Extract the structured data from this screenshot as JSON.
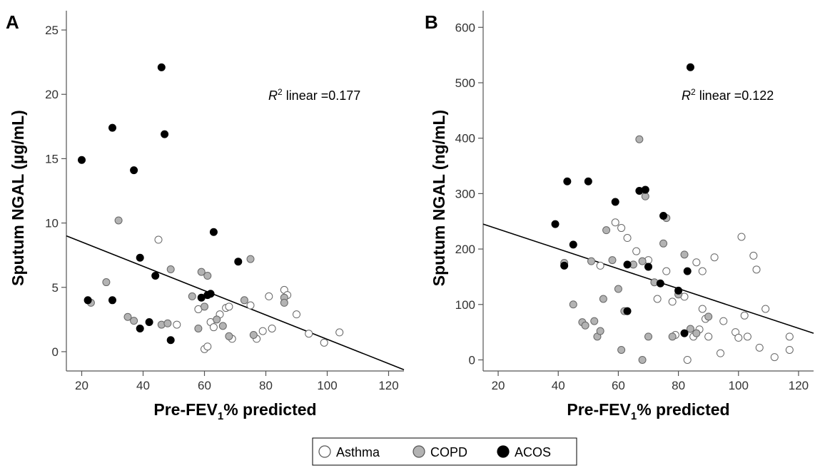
{
  "legend": {
    "items": [
      {
        "label": "Asthma",
        "fill": "#ffffff"
      },
      {
        "label": "COPD",
        "fill": "#b3b3b3"
      },
      {
        "label": "ACOS",
        "fill": "#000000"
      }
    ]
  },
  "chart_data": [
    {
      "type": "scatter",
      "panel_label": "A",
      "xlabel_main": "Pre-FEV",
      "xlabel_sub": "1",
      "xlabel_rest": "% predicted",
      "ylabel": "Sputum NGAL (µg/mL)",
      "xlim": [
        15,
        125
      ],
      "ylim": [
        -1.5,
        26.5
      ],
      "x_ticks": [
        20,
        40,
        60,
        80,
        100,
        120
      ],
      "y_ticks": [
        0,
        5,
        10,
        15,
        20,
        25
      ],
      "annotation_r": "R",
      "annotation_sup": "2",
      "annotation_rest": " linear =0.177",
      "fit_line": [
        [
          15,
          9.0
        ],
        [
          125,
          -1.4
        ]
      ],
      "series": [
        {
          "name": "Asthma",
          "points": [
            [
              45,
              8.7
            ],
            [
              51,
              2.1
            ],
            [
              58,
              3.3
            ],
            [
              60,
              0.2
            ],
            [
              61,
              0.4
            ],
            [
              62,
              2.3
            ],
            [
              63,
              1.9
            ],
            [
              65,
              2.9
            ],
            [
              67,
              3.4
            ],
            [
              68,
              3.5
            ],
            [
              69,
              1.0
            ],
            [
              75,
              3.6
            ],
            [
              77,
              1.0
            ],
            [
              79,
              1.6
            ],
            [
              81,
              4.3
            ],
            [
              82,
              1.8
            ],
            [
              86,
              4.8
            ],
            [
              87,
              4.4
            ],
            [
              90,
              2.9
            ],
            [
              94,
              1.4
            ],
            [
              99,
              0.7
            ],
            [
              104,
              1.5
            ]
          ]
        },
        {
          "name": "COPD",
          "points": [
            [
              23,
              3.8
            ],
            [
              28,
              5.4
            ],
            [
              32,
              10.2
            ],
            [
              35,
              2.7
            ],
            [
              37,
              2.4
            ],
            [
              46,
              2.1
            ],
            [
              48,
              2.2
            ],
            [
              49,
              6.4
            ],
            [
              56,
              4.3
            ],
            [
              58,
              1.8
            ],
            [
              59,
              6.2
            ],
            [
              60,
              3.5
            ],
            [
              61,
              5.9
            ],
            [
              64,
              2.5
            ],
            [
              66,
              2.0
            ],
            [
              68,
              1.2
            ],
            [
              73,
              4.0
            ],
            [
              75,
              7.2
            ],
            [
              76,
              1.3
            ],
            [
              86,
              4.2
            ],
            [
              86,
              3.8
            ]
          ]
        },
        {
          "name": "ACOS",
          "points": [
            [
              20,
              14.9
            ],
            [
              22,
              4.0
            ],
            [
              30,
              17.4
            ],
            [
              30,
              4.0
            ],
            [
              37,
              14.1
            ],
            [
              39,
              7.3
            ],
            [
              39,
              1.8
            ],
            [
              42,
              2.3
            ],
            [
              44,
              5.9
            ],
            [
              46,
              22.1
            ],
            [
              47,
              16.9
            ],
            [
              49,
              0.9
            ],
            [
              59,
              4.2
            ],
            [
              61,
              4.4
            ],
            [
              62,
              4.5
            ],
            [
              63,
              9.3
            ],
            [
              71,
              7.0
            ]
          ]
        }
      ]
    },
    {
      "type": "scatter",
      "panel_label": "B",
      "xlabel_main": "Pre-FEV",
      "xlabel_sub": "1",
      "xlabel_rest": "% predicted",
      "ylabel": "Sputum NGAL (ng/mL)",
      "xlim": [
        15,
        125
      ],
      "ylim": [
        -20,
        630
      ],
      "x_ticks": [
        20,
        40,
        60,
        80,
        100,
        120
      ],
      "y_ticks": [
        0,
        100,
        200,
        300,
        400,
        500,
        600
      ],
      "annotation_r": "R",
      "annotation_sup": "2",
      "annotation_rest": " linear =0.122",
      "fit_line": [
        [
          15,
          245
        ],
        [
          125,
          48
        ]
      ],
      "series": [
        {
          "name": "Asthma",
          "points": [
            [
              54,
              170
            ],
            [
              59,
              248
            ],
            [
              61,
              238
            ],
            [
              63,
              220
            ],
            [
              66,
              196
            ],
            [
              70,
              180
            ],
            [
              73,
              110
            ],
            [
              76,
              160
            ],
            [
              78,
              105
            ],
            [
              79,
              45
            ],
            [
              82,
              114
            ],
            [
              85,
              42
            ],
            [
              86,
              176
            ],
            [
              88,
              160
            ],
            [
              88,
              92
            ],
            [
              89,
              74
            ],
            [
              92,
              185
            ],
            [
              94,
              12
            ],
            [
              95,
              70
            ],
            [
              99,
              50
            ],
            [
              100,
              40
            ],
            [
              101,
              222
            ],
            [
              102,
              80
            ],
            [
              103,
              42
            ],
            [
              105,
              188
            ],
            [
              106,
              163
            ],
            [
              107,
              22
            ],
            [
              109,
              92
            ],
            [
              112,
              5
            ],
            [
              117,
              18
            ],
            [
              117,
              42
            ],
            [
              83,
              0
            ],
            [
              87,
              55
            ],
            [
              90,
              42
            ]
          ]
        },
        {
          "name": "COPD",
          "points": [
            [
              42,
              175
            ],
            [
              45,
              100
            ],
            [
              48,
              68
            ],
            [
              49,
              62
            ],
            [
              51,
              178
            ],
            [
              52,
              70
            ],
            [
              53,
              42
            ],
            [
              54,
              52
            ],
            [
              55,
              110
            ],
            [
              56,
              234
            ],
            [
              58,
              180
            ],
            [
              60,
              128
            ],
            [
              61,
              18
            ],
            [
              62,
              88
            ],
            [
              65,
              172
            ],
            [
              67,
              398
            ],
            [
              68,
              178
            ],
            [
              68,
              0
            ],
            [
              69,
              295
            ],
            [
              70,
              42
            ],
            [
              72,
              140
            ],
            [
              75,
              210
            ],
            [
              76,
              256
            ],
            [
              78,
              42
            ],
            [
              80,
              118
            ],
            [
              82,
              190
            ],
            [
              84,
              56
            ],
            [
              86,
              48
            ],
            [
              90,
              78
            ]
          ]
        },
        {
          "name": "ACOS",
          "points": [
            [
              39,
              245
            ],
            [
              42,
              170
            ],
            [
              43,
              322
            ],
            [
              45,
              208
            ],
            [
              50,
              322
            ],
            [
              59,
              285
            ],
            [
              63,
              172
            ],
            [
              63,
              88
            ],
            [
              67,
              305
            ],
            [
              69,
              307
            ],
            [
              70,
              168
            ],
            [
              74,
              138
            ],
            [
              75,
              260
            ],
            [
              80,
              125
            ],
            [
              82,
              48
            ],
            [
              83,
              160
            ],
            [
              84,
              528
            ]
          ]
        }
      ]
    }
  ]
}
